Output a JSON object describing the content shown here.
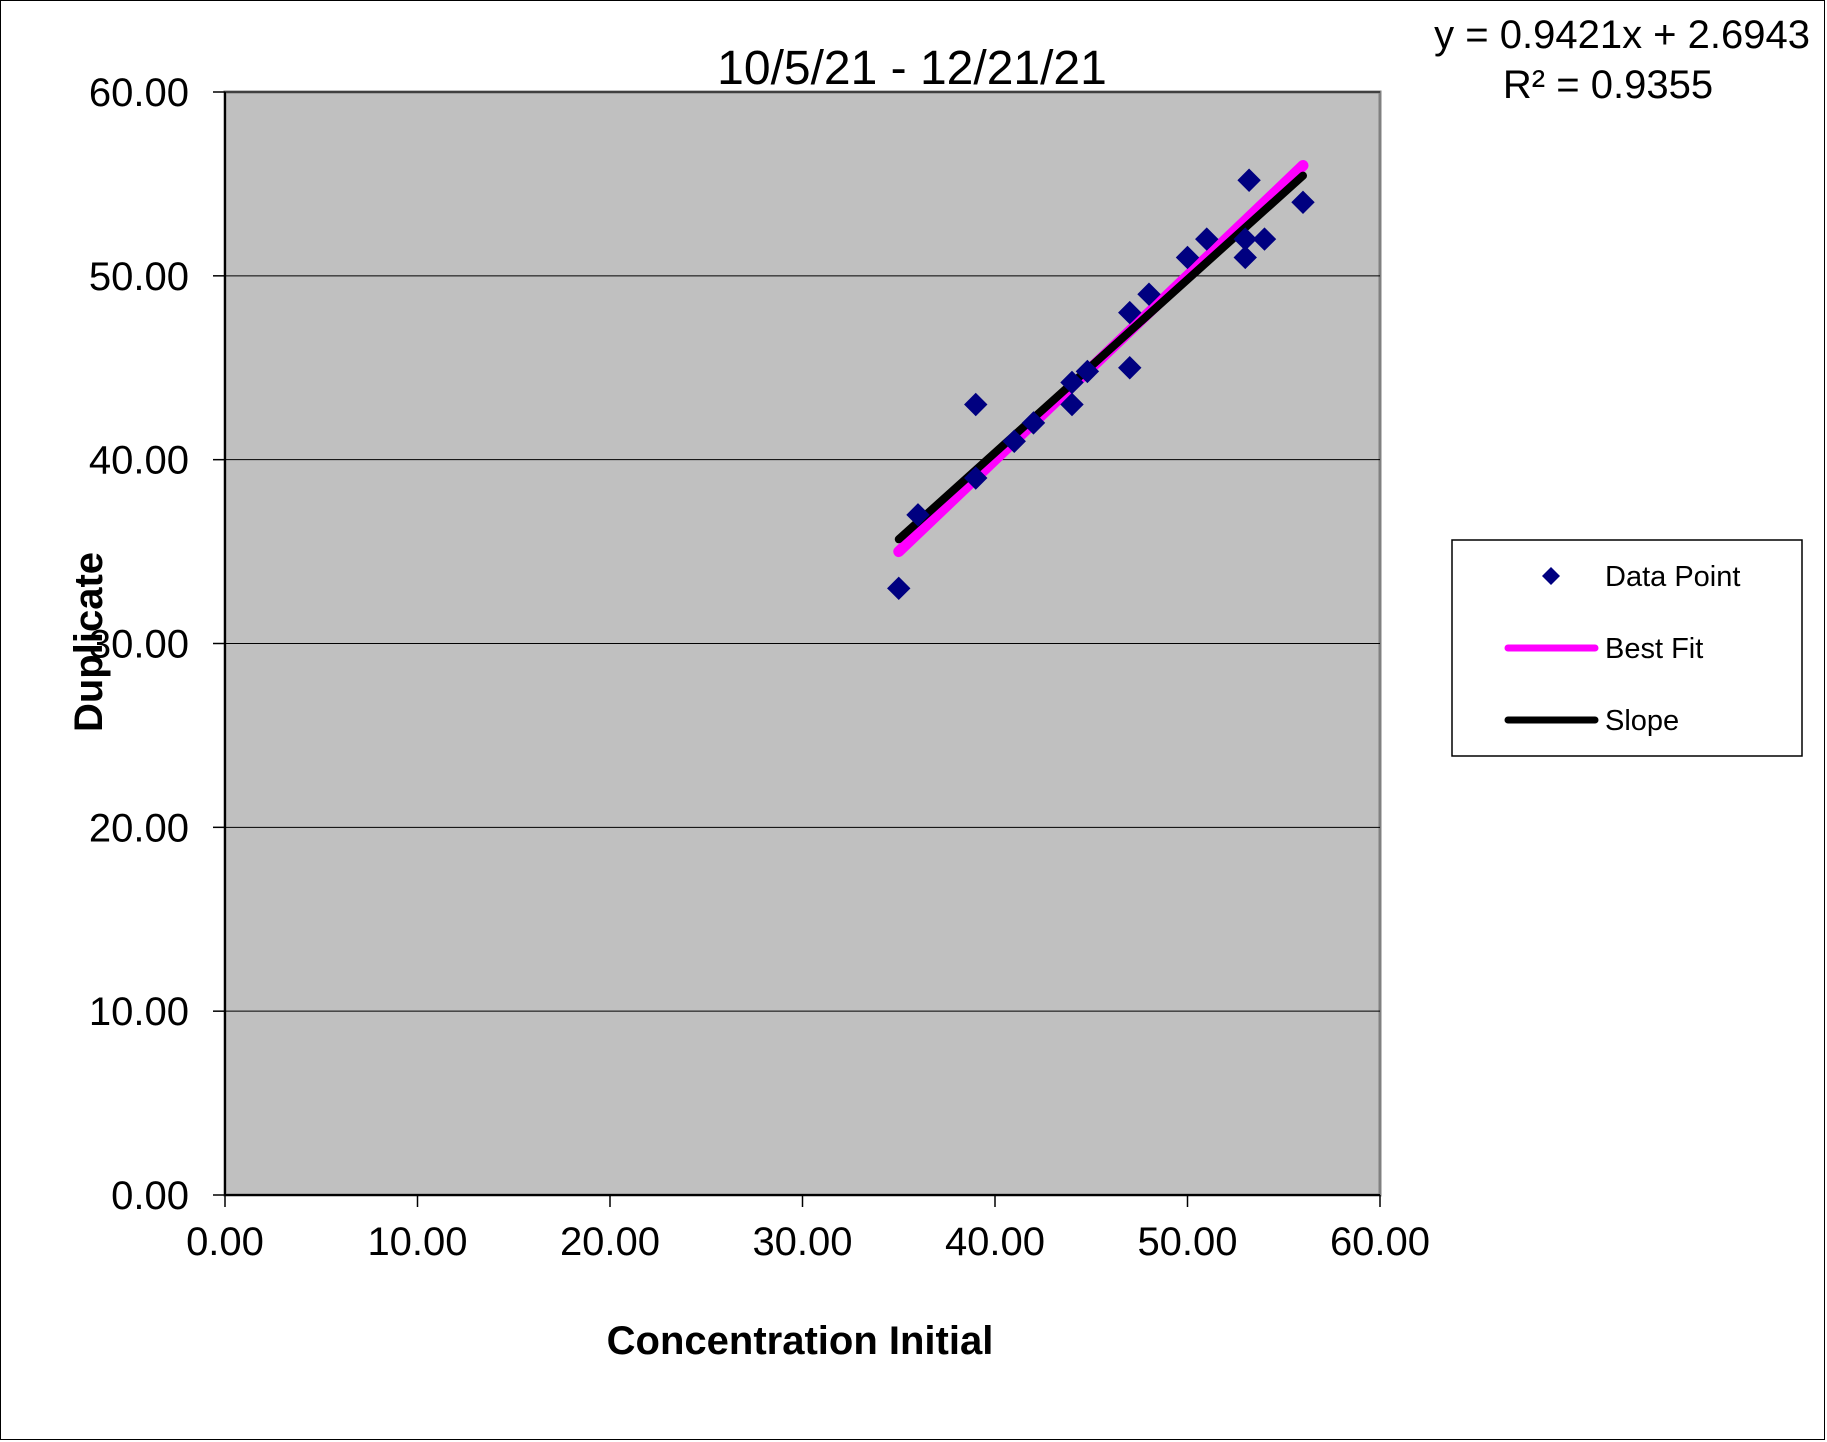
{
  "chart_data": {
    "type": "scatter",
    "title": "10/5/21 - 12/21/21",
    "xlabel": "Concentration Initial",
    "ylabel": "Duplicate",
    "xlim": [
      0,
      60
    ],
    "ylim": [
      0,
      60
    ],
    "x_ticks": [
      "0.00",
      "10.00",
      "20.00",
      "30.00",
      "40.00",
      "50.00",
      "60.00"
    ],
    "y_ticks": [
      "0.00",
      "10.00",
      "20.00",
      "30.00",
      "40.00",
      "50.00",
      "60.00"
    ],
    "grid": "horizontal",
    "background": "#c0c0c0",
    "trendline_equation": "y = 0.9421x + 2.6943",
    "r_squared": "R² = 0.9355",
    "legend_position": "right",
    "series": [
      {
        "name": "Data Point",
        "kind": "markers",
        "marker": "diamond",
        "color": "#000080",
        "points": [
          [
            35.0,
            33.0
          ],
          [
            36.0,
            37.0
          ],
          [
            39.0,
            43.0
          ],
          [
            39.0,
            39.0
          ],
          [
            41.0,
            41.0
          ],
          [
            42.0,
            42.0
          ],
          [
            44.0,
            44.2
          ],
          [
            44.0,
            43.0
          ],
          [
            44.8,
            44.8
          ],
          [
            47.0,
            48.0
          ],
          [
            47.0,
            45.0
          ],
          [
            48.0,
            49.0
          ],
          [
            50.0,
            51.0
          ],
          [
            51.0,
            52.0
          ],
          [
            53.0,
            52.0
          ],
          [
            53.0,
            51.0
          ],
          [
            53.2,
            55.2
          ],
          [
            54.0,
            52.0
          ],
          [
            56.0,
            54.0
          ]
        ]
      },
      {
        "name": "Best Fit",
        "kind": "line",
        "color": "#ff00ff",
        "points": [
          [
            35.0,
            35.0
          ],
          [
            56.0,
            56.0
          ]
        ]
      },
      {
        "name": "Slope",
        "kind": "line",
        "color": "#000000",
        "points": [
          [
            35.0,
            35.67
          ],
          [
            56.0,
            55.45
          ]
        ]
      }
    ]
  }
}
